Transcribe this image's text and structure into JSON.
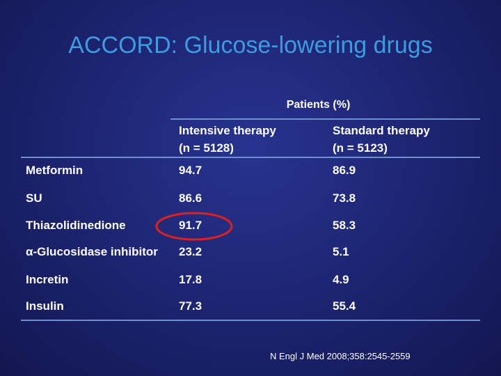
{
  "title": "ACCORD: Glucose-lowering drugs",
  "table": {
    "group_header": "Patients (%)",
    "columns": [
      {
        "name": "Intensive therapy",
        "n": "(n = 5128)"
      },
      {
        "name": "Standard therapy",
        "n": "(n = 5123)"
      }
    ],
    "rows": [
      [
        "Metformin",
        "94.7",
        "86.9"
      ],
      [
        "SU",
        "86.6",
        "73.8"
      ],
      [
        "Thiazolidinedione",
        "91.7",
        "58.3"
      ],
      [
        "α-Glucosidase inhibitor",
        "23.2",
        "5.1"
      ],
      [
        "Incretin",
        "17.8",
        "4.9"
      ],
      [
        "Insulin",
        "77.3",
        "55.4"
      ]
    ]
  },
  "footnote": "N Engl J Med 2008;358:2545-2559"
}
